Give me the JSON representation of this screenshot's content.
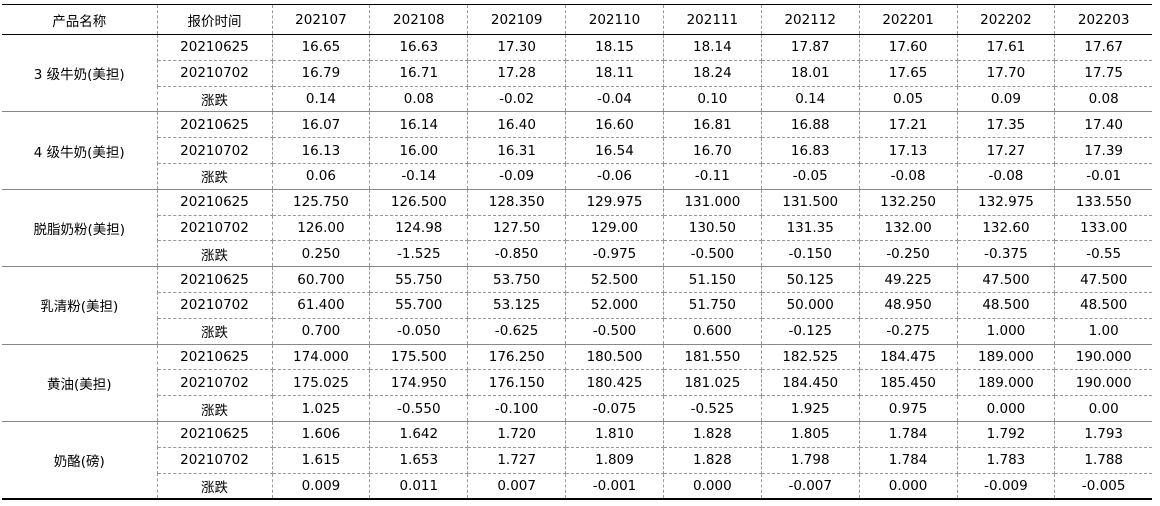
{
  "header": [
    "产品名称",
    "报价时间",
    "202107",
    "202108",
    "202109",
    "202110",
    "202111",
    "202112",
    "202201",
    "202202",
    "202203"
  ],
  "groups": [
    {
      "name": "3 级牛奶(美担)",
      "rows": [
        {
          "date": "20210625",
          "values": [
            "16.65",
            "16.63",
            "17.30",
            "18.15",
            "18.14",
            "17.87",
            "17.60",
            "17.61",
            "17.67"
          ]
        },
        {
          "date": "20210702",
          "values": [
            "16.79",
            "16.71",
            "17.28",
            "18.11",
            "18.24",
            "18.01",
            "17.65",
            "17.70",
            "17.75"
          ]
        },
        {
          "date": "涨跌",
          "values": [
            "0.14",
            "0.08",
            "-0.02",
            "-0.04",
            "0.10",
            "0.14",
            "0.05",
            "0.09",
            "0.08"
          ]
        }
      ]
    },
    {
      "name": "4 级牛奶(美担)",
      "rows": [
        {
          "date": "20210625",
          "values": [
            "16.07",
            "16.14",
            "16.40",
            "16.60",
            "16.81",
            "16.88",
            "17.21",
            "17.35",
            "17.40"
          ]
        },
        {
          "date": "20210702",
          "values": [
            "16.13",
            "16.00",
            "16.31",
            "16.54",
            "16.70",
            "16.83",
            "17.13",
            "17.27",
            "17.39"
          ]
        },
        {
          "date": "涨跌",
          "values": [
            "0.06",
            "-0.14",
            "-0.09",
            "-0.06",
            "-0.11",
            "-0.05",
            "-0.08",
            "-0.08",
            "-0.01"
          ]
        }
      ]
    },
    {
      "name": "脱脂奶粉(美担)",
      "rows": [
        {
          "date": "20210625",
          "values": [
            "125.750",
            "126.500",
            "128.350",
            "129.975",
            "131.000",
            "131.500",
            "132.250",
            "132.975",
            "133.550"
          ]
        },
        {
          "date": "20210702",
          "values": [
            "126.00",
            "124.98",
            "127.50",
            "129.00",
            "130.50",
            "131.35",
            "132.00",
            "132.60",
            "133.00"
          ]
        },
        {
          "date": "涨跌",
          "values": [
            "0.250",
            "-1.525",
            "-0.850",
            "-0.975",
            "-0.500",
            "-0.150",
            "-0.250",
            "-0.375",
            "-0.55"
          ]
        }
      ]
    },
    {
      "name": "乳清粉(美担)",
      "rows": [
        {
          "date": "20210625",
          "values": [
            "60.700",
            "55.750",
            "53.750",
            "52.500",
            "51.150",
            "50.125",
            "49.225",
            "47.500",
            "47.500"
          ]
        },
        {
          "date": "20210702",
          "values": [
            "61.400",
            "55.700",
            "53.125",
            "52.000",
            "51.750",
            "50.000",
            "48.950",
            "48.500",
            "48.500"
          ]
        },
        {
          "date": "涨跌",
          "values": [
            "0.700",
            "-0.050",
            "-0.625",
            "-0.500",
            "0.600",
            "-0.125",
            "-0.275",
            "1.000",
            "1.00"
          ]
        }
      ]
    },
    {
      "name": "黄油(美担)",
      "rows": [
        {
          "date": "20210625",
          "values": [
            "174.000",
            "175.500",
            "176.250",
            "180.500",
            "181.550",
            "182.525",
            "184.475",
            "189.000",
            "190.000"
          ]
        },
        {
          "date": "20210702",
          "values": [
            "175.025",
            "174.950",
            "176.150",
            "180.425",
            "181.025",
            "184.450",
            "185.450",
            "189.000",
            "190.000"
          ]
        },
        {
          "date": "涨跌",
          "values": [
            "1.025",
            "-0.550",
            "-0.100",
            "-0.075",
            "-0.525",
            "1.925",
            "0.975",
            "0.000",
            "0.00"
          ]
        }
      ]
    },
    {
      "name": "奶酪(磅)",
      "rows": [
        {
          "date": "20210625",
          "values": [
            "1.606",
            "1.642",
            "1.720",
            "1.810",
            "1.828",
            "1.805",
            "1.784",
            "1.792",
            "1.793"
          ]
        },
        {
          "date": "20210702",
          "values": [
            "1.615",
            "1.653",
            "1.727",
            "1.809",
            "1.828",
            "1.798",
            "1.784",
            "1.783",
            "1.788"
          ]
        },
        {
          "date": "涨跌",
          "values": [
            "0.009",
            "0.011",
            "0.007",
            "-0.001",
            "0.000",
            "-0.007",
            "0.000",
            "-0.009",
            "-0.005"
          ]
        }
      ]
    }
  ]
}
